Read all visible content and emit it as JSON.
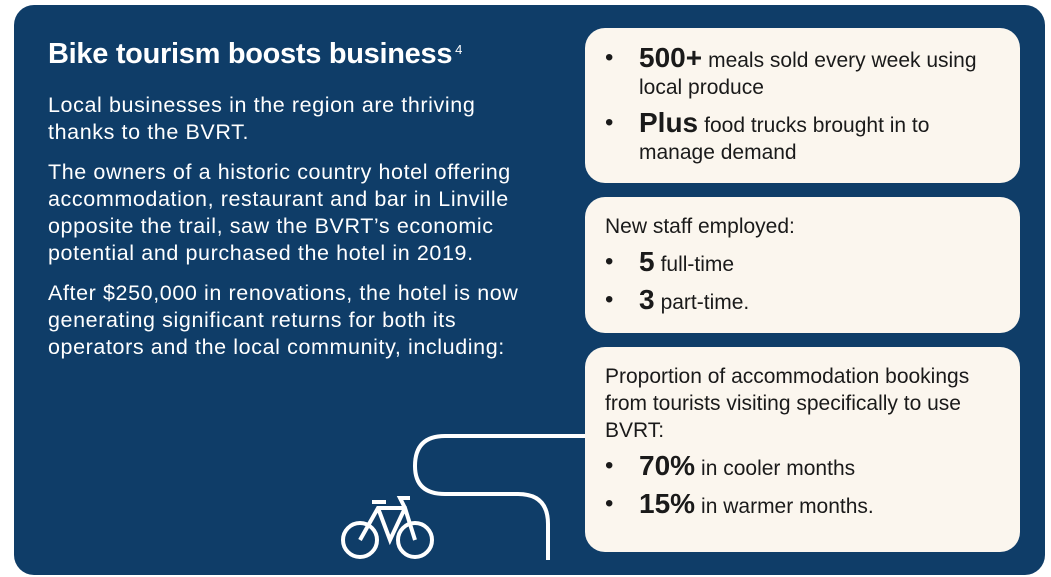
{
  "header": {
    "title": "Bike tourism boosts business",
    "superscript": "4"
  },
  "paragraphs": [
    "Local businesses in the region are thriving thanks to the BVRT.",
    "The owners of a historic country hotel offering accommodation, restaurant and bar in Linville opposite the trail, saw the BVRT’s economic potential and purchased the hotel in 2019.",
    "After $250,000 in renovations, the hotel is now generating significant returns for both its operators and the local community, including:"
  ],
  "boxes": [
    {
      "items": [
        {
          "bold": "500+",
          "text": "meals sold every week using local produce"
        },
        {
          "bold": "Plus",
          "text": "food trucks brought in to manage demand"
        }
      ]
    },
    {
      "heading": "New staff employed:",
      "items": [
        {
          "bold": "5",
          "text": "full-time"
        },
        {
          "bold": "3",
          "text": "part-time."
        }
      ]
    },
    {
      "heading": "Proportion of accommodation bookings from tourists visiting specifically to use BVRT:",
      "items": [
        {
          "bold": "70%",
          "text": "in cooler months"
        },
        {
          "bold": "15%",
          "text": "in warmer months."
        }
      ]
    }
  ]
}
